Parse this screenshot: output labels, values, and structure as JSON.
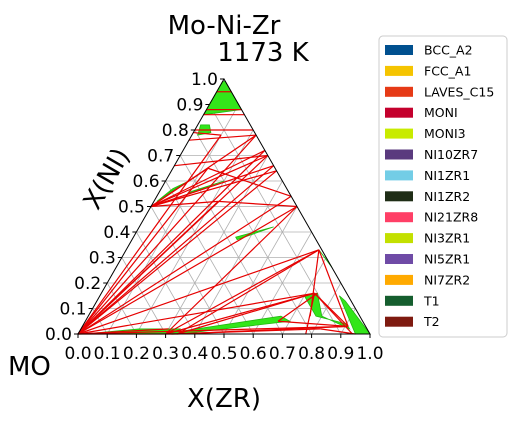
{
  "chart_data": {
    "type": "scatter",
    "title": "Mo-Ni-Zr",
    "subtitle": "1173  K",
    "xlabel": "X(ZR)",
    "ylabel": "X(NI)",
    "corner_label": "MO",
    "xlim": [
      0,
      1
    ],
    "ylim": [
      0,
      1
    ],
    "x_ticks": [
      "0.0",
      "0.1",
      "0.2",
      "0.3",
      "0.4",
      "0.5",
      "0.6",
      "0.7",
      "0.8",
      "0.9",
      "1.0"
    ],
    "y_ticks": [
      "0.0",
      "0.1",
      "0.2",
      "0.3",
      "0.4",
      "0.5",
      "0.6",
      "0.7",
      "0.8",
      "0.9",
      "1.0"
    ],
    "grid": true,
    "legend_position": "right",
    "legend": [
      {
        "name": "BCC_A2",
        "color": "#00508f"
      },
      {
        "name": "FCC_A1",
        "color": "#f5c400"
      },
      {
        "name": "LAVES_C15",
        "color": "#e63a16"
      },
      {
        "name": "MONI",
        "color": "#c4002d"
      },
      {
        "name": "MONI3",
        "color": "#c8eb00"
      },
      {
        "name": "NI10ZR7",
        "color": "#5a3a7e"
      },
      {
        "name": "NI1ZR1",
        "color": "#73cde6"
      },
      {
        "name": "NI1ZR2",
        "color": "#1f2d16"
      },
      {
        "name": "NI21ZR8",
        "color": "#ff3f66"
      },
      {
        "name": "NI3ZR1",
        "color": "#c3e000"
      },
      {
        "name": "NI5ZR1",
        "color": "#6f4ba6"
      },
      {
        "name": "NI7ZR2",
        "color": "#ffaa00"
      },
      {
        "name": "T1",
        "color": "#155e2e"
      },
      {
        "name": "T2",
        "color": "#7e1a10"
      }
    ],
    "tie_line_color": "#e60000",
    "region_color": "#33e61a",
    "tie_lines": [
      [
        [
          0.0,
          0.0
        ],
        [
          0.34,
          0.0
        ]
      ],
      [
        [
          0.0,
          0.0
        ],
        [
          0.3,
          0.02
        ]
      ],
      [
        [
          0.0,
          0.0
        ],
        [
          0.73,
          0.16
        ]
      ],
      [
        [
          0.0,
          0.0
        ],
        [
          0.91,
          0.03
        ]
      ],
      [
        [
          0.0,
          0.0
        ],
        [
          0.66,
          0.33
        ]
      ],
      [
        [
          0.0,
          0.0
        ],
        [
          0.5,
          0.5
        ]
      ],
      [
        [
          0.0,
          0.0
        ],
        [
          0.36,
          0.64
        ]
      ],
      [
        [
          0.0,
          0.0
        ],
        [
          0.3,
          0.7
        ]
      ],
      [
        [
          0.0,
          0.0
        ],
        [
          0.22,
          0.78
        ]
      ],
      [
        [
          0.0,
          0.0
        ],
        [
          0.1,
          0.78
        ]
      ],
      [
        [
          0.0,
          0.0
        ],
        [
          0.12,
          0.65
        ]
      ],
      [
        [
          0.0,
          0.0
        ],
        [
          0.22,
          0.52
        ]
      ],
      [
        [
          0.0,
          0.0
        ],
        [
          0.28,
          0.72
        ]
      ],
      [
        [
          0.0,
          0.0
        ],
        [
          0.34,
          0.66
        ]
      ],
      [
        [
          0.0,
          0.0
        ],
        [
          0.46,
          0.54
        ]
      ],
      [
        [
          0.0,
          0.5
        ],
        [
          0.34,
          0.66
        ]
      ],
      [
        [
          0.0,
          0.5
        ],
        [
          0.3,
          0.7
        ]
      ],
      [
        [
          0.0,
          0.5
        ],
        [
          0.22,
          0.78
        ]
      ],
      [
        [
          0.0,
          0.5
        ],
        [
          0.28,
          0.72
        ]
      ],
      [
        [
          0.0,
          0.5
        ],
        [
          0.36,
          0.64
        ]
      ],
      [
        [
          0.0,
          0.5
        ],
        [
          0.12,
          0.65
        ]
      ],
      [
        [
          0.0,
          0.5
        ],
        [
          0.22,
          0.52
        ]
      ],
      [
        [
          0.0,
          0.76
        ],
        [
          0.22,
          0.78
        ]
      ],
      [
        [
          0.0,
          0.79
        ],
        [
          0.1,
          0.78
        ]
      ],
      [
        [
          0.0,
          0.8
        ],
        [
          0.2,
          0.8
        ]
      ],
      [
        [
          0.0,
          0.66
        ],
        [
          0.3,
          0.7
        ]
      ],
      [
        [
          0.0,
          0.86
        ],
        [
          0.14,
          0.86
        ]
      ],
      [
        [
          0.0,
          0.95
        ],
        [
          0.05,
          0.95
        ]
      ],
      [
        [
          0.0,
          0.88
        ],
        [
          0.12,
          0.88
        ]
      ],
      [
        [
          0.3,
          0.0
        ],
        [
          0.5,
          0.5
        ]
      ],
      [
        [
          0.3,
          0.0
        ],
        [
          0.66,
          0.33
        ]
      ],
      [
        [
          0.3,
          0.0
        ],
        [
          0.73,
          0.16
        ]
      ],
      [
        [
          0.34,
          0.0
        ],
        [
          0.73,
          0.16
        ]
      ],
      [
        [
          0.34,
          0.0
        ],
        [
          0.66,
          0.33
        ]
      ],
      [
        [
          0.32,
          0.0
        ],
        [
          0.82,
          0.02
        ]
      ],
      [
        [
          0.34,
          0.0
        ],
        [
          0.91,
          0.03
        ]
      ],
      [
        [
          0.73,
          0.16
        ],
        [
          0.91,
          0.03
        ]
      ],
      [
        [
          0.73,
          0.16
        ],
        [
          0.78,
          0.0
        ]
      ],
      [
        [
          0.73,
          0.16
        ],
        [
          0.94,
          0.0
        ]
      ],
      [
        [
          0.66,
          0.33
        ],
        [
          0.76,
          0.07
        ]
      ],
      [
        [
          0.66,
          0.33
        ],
        [
          0.91,
          0.03
        ]
      ],
      [
        [
          0.82,
          0.02
        ],
        [
          0.95,
          0.0
        ]
      ],
      [
        [
          0.66,
          0.05
        ],
        [
          0.91,
          0.03
        ]
      ],
      [
        [
          0.66,
          0.05
        ],
        [
          0.74,
          0.16
        ]
      ],
      [
        [
          0.46,
          0.54
        ],
        [
          0.12,
          0.65
        ]
      ],
      [
        [
          0.5,
          0.5
        ],
        [
          0.22,
          0.52
        ]
      ]
    ],
    "regions": [
      [
        [
          0.0,
          0.99
        ],
        [
          0.0,
          0.86
        ],
        [
          0.12,
          0.88
        ],
        [
          0.07,
          0.93
        ],
        [
          0.01,
          0.99
        ]
      ],
      [
        [
          0.01,
          0.82
        ],
        [
          0.02,
          0.78
        ],
        [
          0.06,
          0.79
        ],
        [
          0.04,
          0.82
        ]
      ],
      [
        [
          0.01,
          0.52
        ],
        [
          0.05,
          0.57
        ],
        [
          0.08,
          0.6
        ],
        [
          0.04,
          0.57
        ]
      ],
      [
        [
          0.02,
          0.0
        ],
        [
          0.34,
          0.0
        ],
        [
          0.34,
          0.02
        ],
        [
          0.2,
          0.02
        ]
      ],
      [
        [
          0.29,
          0.0
        ],
        [
          0.66,
          0.07
        ],
        [
          0.7,
          0.05
        ],
        [
          0.35,
          0.0
        ]
      ],
      [
        [
          0.7,
          0.15
        ],
        [
          0.74,
          0.16
        ],
        [
          0.8,
          0.07
        ],
        [
          0.92,
          0.02
        ],
        [
          0.9,
          0.04
        ],
        [
          0.78,
          0.07
        ]
      ],
      [
        [
          0.85,
          0.13
        ],
        [
          1.0,
          0.0
        ],
        [
          0.95,
          0.0
        ],
        [
          0.82,
          0.15
        ]
      ],
      [
        [
          0.66,
          0.33
        ],
        [
          0.73,
          0.27
        ],
        [
          0.74,
          0.26
        ]
      ],
      [
        [
          0.35,
          0.38
        ],
        [
          0.46,
          0.42
        ],
        [
          0.36,
          0.37
        ]
      ],
      [
        [
          0.1,
          0.55
        ],
        [
          0.2,
          0.6
        ],
        [
          0.11,
          0.56
        ]
      ]
    ]
  }
}
